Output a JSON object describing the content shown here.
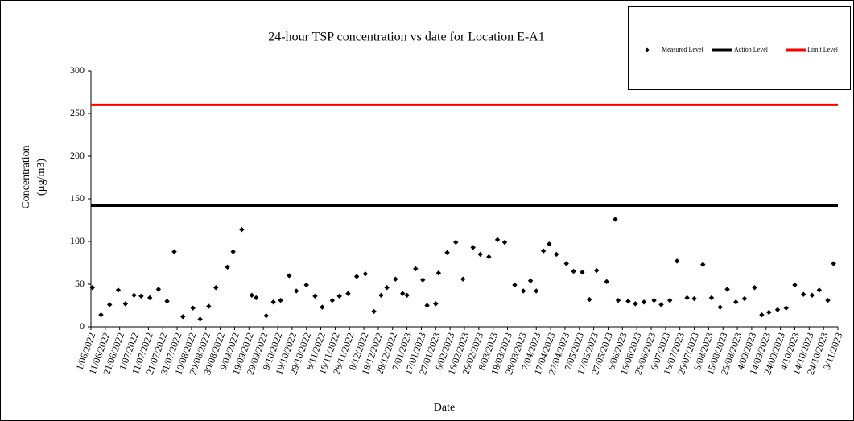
{
  "chart_data": {
    "type": "scatter",
    "title": "24-hour TSP concentration vs date for Location E-A1",
    "x_label": "Date",
    "y_label": [
      "Concentration",
      "(µg/m3)"
    ],
    "ylim": [
      0,
      300
    ],
    "yticks": [
      0,
      50,
      100,
      150,
      200,
      250,
      300
    ],
    "xlim": [
      "1/06/2022",
      "3/11/2023"
    ],
    "xticks": [
      "1/06/2022",
      "11/06/2022",
      "21/06/2022",
      "1/07/2022",
      "11/07/2022",
      "21/07/2022",
      "31/07/2022",
      "10/08/2022",
      "20/08/2022",
      "30/08/2022",
      "9/09/2022",
      "19/09/2022",
      "29/09/2022",
      "9/10/2022",
      "19/10/2022",
      "29/10/2022",
      "8/11/2022",
      "18/11/2022",
      "28/11/2022",
      "8/12/2022",
      "18/12/2022",
      "28/12/2022",
      "7/01/2023",
      "17/01/2023",
      "27/01/2023",
      "6/02/2023",
      "16/02/2023",
      "26/02/2023",
      "8/03/2023",
      "18/03/2023",
      "28/03/2023",
      "7/04/2023",
      "17/04/2023",
      "27/04/2023",
      "7/05/2023",
      "17/05/2023",
      "27/05/2023",
      "6/06/2023",
      "16/06/2023",
      "26/06/2023",
      "6/07/2023",
      "16/07/2023",
      "26/07/2023",
      "5/08/2023",
      "15/08/2023",
      "25/08/2023",
      "4/09/2023",
      "14/09/2023",
      "24/09/2023",
      "4/10/2023",
      "14/10/2023",
      "24/10/2023",
      "3/11/2023"
    ],
    "legend": "top-right",
    "series": [
      {
        "name": "Measured Level",
        "color": "#000000",
        "x": [
          "2/06/2022",
          "8/06/2022",
          "14/06/2022",
          "20/06/2022",
          "25/06/2022",
          "1/07/2022",
          "6/07/2022",
          "12/07/2022",
          "18/07/2022",
          "24/07/2022",
          "29/07/2022",
          "4/08/2022",
          "11/08/2022",
          "16/08/2022",
          "22/08/2022",
          "27/08/2022",
          "4/09/2022",
          "8/09/2022",
          "14/09/2022",
          "21/09/2022",
          "24/09/2022",
          "1/10/2022",
          "6/10/2022",
          "11/10/2022",
          "17/10/2022",
          "22/10/2022",
          "29/10/2022",
          "4/11/2022",
          "9/11/2022",
          "16/11/2022",
          "21/11/2022",
          "27/11/2022",
          "3/12/2022",
          "9/12/2022",
          "15/12/2022",
          "20/12/2022",
          "24/12/2022",
          "30/12/2022",
          "4/01/2023",
          "7/01/2023",
          "13/01/2023",
          "18/01/2023",
          "21/01/2023",
          "27/01/2023",
          "29/01/2023",
          "4/02/2023",
          "10/02/2023",
          "15/02/2023",
          "22/02/2023",
          "27/02/2023",
          "5/03/2023",
          "11/03/2023",
          "16/03/2023",
          "23/03/2023",
          "29/03/2023",
          "3/04/2023",
          "7/04/2023",
          "12/04/2023",
          "16/04/2023",
          "21/04/2023",
          "28/04/2023",
          "3/05/2023",
          "9/05/2023",
          "14/05/2023",
          "19/05/2023",
          "26/05/2023",
          "1/06/2023",
          "3/06/2023",
          "10/06/2023",
          "15/06/2023",
          "21/06/2023",
          "28/06/2023",
          "3/07/2023",
          "9/07/2023",
          "14/07/2023",
          "21/07/2023",
          "26/07/2023",
          "1/08/2023",
          "7/08/2023",
          "13/08/2023",
          "18/08/2023",
          "24/08/2023",
          "30/08/2023",
          "6/09/2023",
          "11/09/2023",
          "16/09/2023",
          "22/09/2023",
          "28/09/2023",
          "4/10/2023",
          "10/10/2023",
          "16/10/2023",
          "21/10/2023",
          "27/10/2023",
          "31/10/2023"
        ],
        "values": [
          46,
          14,
          26,
          43,
          27,
          37,
          36,
          34,
          44,
          30,
          88,
          12,
          22,
          9,
          24,
          46,
          70,
          88,
          114,
          37,
          34,
          13,
          29,
          31,
          60,
          42,
          49,
          36,
          23,
          31,
          36,
          39,
          59,
          62,
          18,
          37,
          46,
          56,
          39,
          37,
          68,
          55,
          25,
          27,
          63,
          87,
          99,
          56,
          93,
          85,
          82,
          102,
          99,
          49,
          42,
          54,
          42,
          89,
          97,
          85,
          74,
          65,
          64,
          32,
          66,
          53,
          126,
          31,
          30,
          27,
          29,
          31,
          26,
          31,
          77,
          34,
          33,
          73,
          34,
          23,
          44,
          29,
          33,
          46,
          14,
          17,
          20,
          22,
          49,
          38,
          37,
          43,
          31,
          74
        ]
      },
      {
        "name": "Action Level",
        "color": "#000000",
        "value": 142
      },
      {
        "name": "Limit Level",
        "color": "#ff0000",
        "value": 260
      }
    ]
  }
}
